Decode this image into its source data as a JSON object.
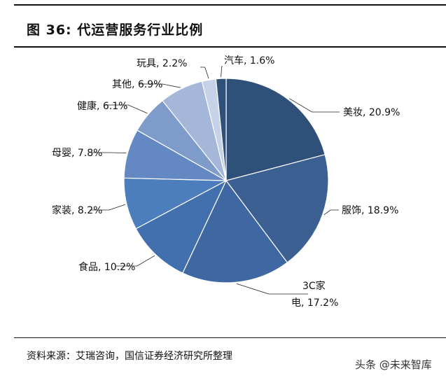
{
  "header": {
    "title": "图 36:  代运营服务行业比例"
  },
  "footer": {
    "source": "资料来源：艾瑞咨询，国信证券经济研究所整理"
  },
  "watermark": "头条 @未来智库",
  "colors": {
    "slices": [
      "#2f5179",
      "#3b6091",
      "#3f68a2",
      "#4270af",
      "#4c7dbc",
      "#6489c2",
      "#7f9bca",
      "#a4b7d9",
      "#c6d2e8"
    ]
  },
  "chart_data": {
    "type": "pie",
    "title": "代运营服务行业比例",
    "slices": [
      {
        "name": "美妆",
        "value": 20.9,
        "label": "美妆, 20.9%"
      },
      {
        "name": "服饰",
        "value": 18.9,
        "label": "服饰, 18.9%"
      },
      {
        "name": "3C家电",
        "value": 17.2,
        "label_line1": "3C家",
        "label_line2": "电, 17.2%"
      },
      {
        "name": "食品",
        "value": 10.2,
        "label": "食品, 10.2%"
      },
      {
        "name": "家装",
        "value": 8.2,
        "label": "家装, 8.2%"
      },
      {
        "name": "母婴",
        "value": 7.8,
        "label": "母婴, 7.8%"
      },
      {
        "name": "健康",
        "value": 6.1,
        "label": "健康, 6.1%"
      },
      {
        "name": "其他",
        "value": 6.9,
        "label": "其他, 6.9%"
      },
      {
        "name": "玩具",
        "value": 2.2,
        "label": "玩具, 2.2%"
      },
      {
        "name": "汽车",
        "value": 1.6,
        "label": "汽车, 1.6%"
      }
    ],
    "start": "12 o'clock",
    "direction": "clockwise",
    "legend": "none"
  }
}
